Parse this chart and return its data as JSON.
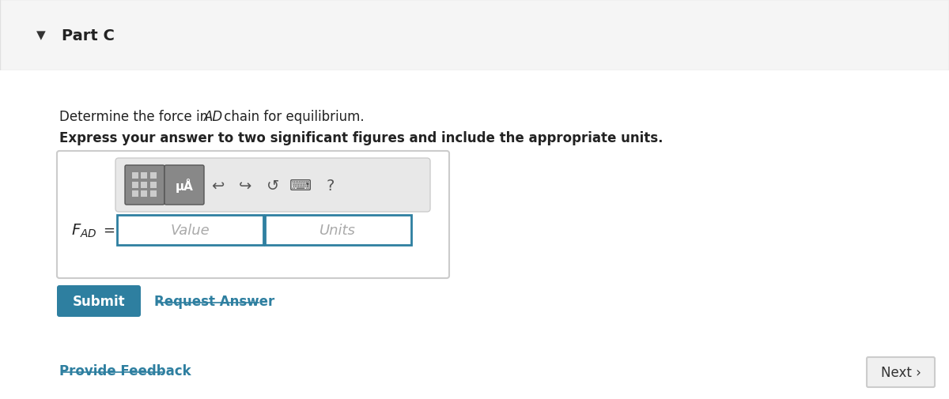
{
  "bg_color": "#ffffff",
  "header_bg": "#f5f5f5",
  "header_border": "#e0e0e0",
  "header_text": "Part C",
  "header_triangle_color": "#333333",
  "body_text1": "Determine the force in ",
  "body_text1_italic": "AD",
  "body_text1_rest": " chain for equilibrium.",
  "body_text2": "Express your answer to two significant figures and include the appropriate units.",
  "equation_label": "$F_{AD}$ =",
  "value_placeholder": "Value",
  "units_placeholder": "Units",
  "submit_bg": "#2e7fa0",
  "submit_text": "Submit",
  "submit_text_color": "#ffffff",
  "request_answer_text": "Request Answer",
  "request_answer_color": "#2e7fa0",
  "provide_feedback_text": "Provide Feedback",
  "provide_feedback_color": "#2e7fa0",
  "next_text": "Next ›",
  "next_bg": "#f0f0f0",
  "next_border": "#cccccc",
  "input_border_color": "#2e7fa0",
  "toolbar_bg": "#e8e8e8",
  "toolbar_border": "#cccccc",
  "outer_box_bg": "#ffffff",
  "outer_box_border": "#cccccc",
  "placeholder_color": "#aaaaaa",
  "icon_btn1_bg": "#888888",
  "icon_btn2_bg": "#888888"
}
